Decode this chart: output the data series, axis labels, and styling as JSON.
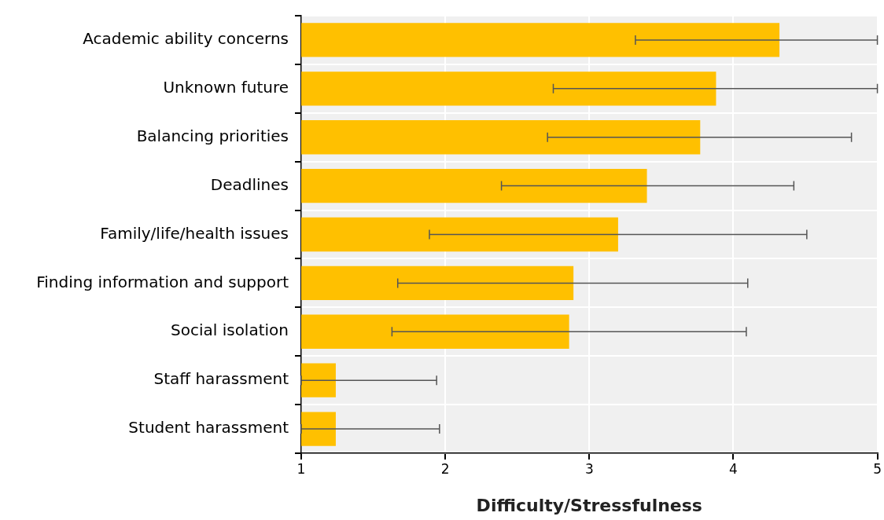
{
  "chart_data": {
    "type": "bar",
    "orientation": "horizontal",
    "xlabel": "Difficulty/Stressfulness",
    "categories": [
      "Academic ability concerns",
      "Unknown future",
      "Balancing priorities",
      "Deadlines",
      "Family/life/health issues",
      "Finding information and support",
      "Social isolation",
      "Staff harassment",
      "Student harassment"
    ],
    "values": [
      4.32,
      3.88,
      3.77,
      3.4,
      3.2,
      2.89,
      2.86,
      1.24,
      1.24
    ],
    "errors": [
      [
        3.32,
        5
      ],
      [
        2.75,
        5
      ],
      [
        2.71,
        4.82
      ],
      [
        2.39,
        4.42
      ],
      [
        1.89,
        4.51
      ],
      [
        1.67,
        4.1
      ],
      [
        1.63,
        4.09
      ],
      [
        1,
        1.94
      ],
      [
        1,
        1.96
      ]
    ],
    "color": "#ffc000",
    "xlim": [
      1,
      5
    ],
    "xticks": [
      1,
      2,
      3,
      4,
      5
    ],
    "grid": true,
    "legend": false
  }
}
